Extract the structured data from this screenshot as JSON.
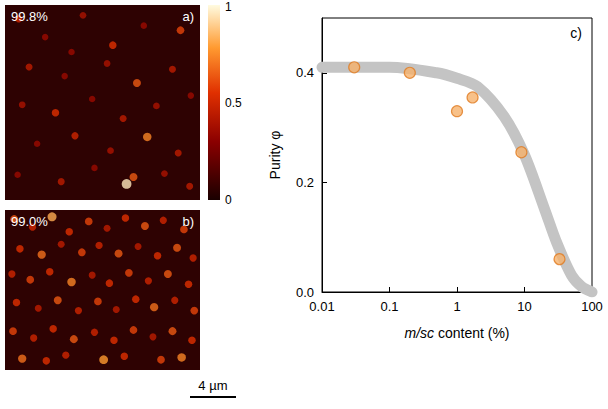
{
  "chart_data": [
    {
      "type": "heatmap",
      "panel": "a)",
      "title": "99.8%",
      "xlim": [
        0,
        17
      ],
      "ylim": [
        0,
        17
      ],
      "tick_labels": false,
      "spots": [
        [
          1.2,
          15.8,
          0.45
        ],
        [
          3.5,
          14.2,
          0.3
        ],
        [
          6.8,
          16.1,
          0.35
        ],
        [
          9.4,
          13.5,
          0.5
        ],
        [
          12.1,
          15.2,
          0.3
        ],
        [
          15.3,
          14.8,
          0.55
        ],
        [
          2.1,
          11.6,
          0.4
        ],
        [
          5.2,
          10.8,
          0.3
        ],
        [
          8.9,
          11.9,
          0.35
        ],
        [
          11.5,
          10.2,
          0.6
        ],
        [
          14.6,
          11.4,
          0.4
        ],
        [
          16.2,
          9.1,
          0.3
        ],
        [
          1.5,
          8.3,
          0.35
        ],
        [
          4.4,
          7.6,
          0.5
        ],
        [
          7.6,
          8.8,
          0.3
        ],
        [
          10.3,
          7.1,
          0.4
        ],
        [
          13.2,
          8.2,
          0.35
        ],
        [
          2.8,
          4.9,
          0.3
        ],
        [
          6.1,
          5.6,
          0.45
        ],
        [
          9.2,
          4.3,
          0.35
        ],
        [
          12.4,
          5.5,
          0.7
        ],
        [
          15.1,
          4.1,
          0.4
        ],
        [
          1.1,
          2.2,
          0.3
        ],
        [
          4.9,
          1.6,
          0.4
        ],
        [
          7.8,
          2.8,
          0.3
        ],
        [
          10.6,
          1.4,
          0.95
        ],
        [
          13.9,
          2.3,
          0.35
        ],
        [
          16.1,
          1.2,
          0.4
        ],
        [
          11.2,
          2.0,
          0.6
        ],
        [
          5.8,
          12.9,
          0.3
        ]
      ],
      "colorbar": {
        "range": [
          0,
          1
        ],
        "ticks": [
          0,
          0.5,
          1
        ]
      }
    },
    {
      "type": "heatmap",
      "panel": "b)",
      "title": "99.0%",
      "xlim": [
        0,
        17
      ],
      "ylim": [
        0,
        14
      ],
      "tick_labels": false,
      "spots": [
        [
          0.8,
          13.2,
          0.6
        ],
        [
          2.4,
          12.5,
          0.45
        ],
        [
          4.1,
          13.4,
          0.8
        ],
        [
          5.6,
          12.1,
          0.5
        ],
        [
          7.3,
          13.0,
          0.55
        ],
        [
          8.9,
          12.4,
          0.4
        ],
        [
          10.5,
          13.3,
          0.5
        ],
        [
          12.2,
          12.6,
          0.6
        ],
        [
          13.8,
          13.1,
          0.45
        ],
        [
          15.6,
          12.3,
          0.55
        ],
        [
          1.3,
          10.6,
          0.5
        ],
        [
          3.2,
          10.1,
          0.65
        ],
        [
          4.9,
          11.0,
          0.4
        ],
        [
          6.7,
          10.3,
          0.55
        ],
        [
          8.2,
          10.9,
          0.45
        ],
        [
          9.9,
          10.2,
          0.6
        ],
        [
          11.6,
          10.8,
          0.4
        ],
        [
          13.3,
          10.0,
          0.5
        ],
        [
          15.0,
          10.7,
          0.6
        ],
        [
          16.4,
          9.8,
          0.45
        ],
        [
          0.6,
          8.4,
          0.45
        ],
        [
          2.2,
          7.9,
          0.55
        ],
        [
          3.9,
          8.6,
          0.5
        ],
        [
          5.8,
          7.7,
          0.7
        ],
        [
          7.6,
          8.3,
          0.4
        ],
        [
          9.1,
          7.6,
          0.5
        ],
        [
          10.8,
          8.5,
          0.55
        ],
        [
          12.5,
          7.8,
          0.45
        ],
        [
          14.2,
          8.4,
          0.6
        ],
        [
          16.0,
          7.5,
          0.5
        ],
        [
          1.0,
          5.9,
          0.5
        ],
        [
          2.9,
          5.4,
          0.4
        ],
        [
          4.6,
          6.1,
          0.6
        ],
        [
          6.4,
          5.2,
          0.45
        ],
        [
          8.1,
          6.0,
          0.55
        ],
        [
          9.7,
          5.3,
          0.4
        ],
        [
          11.4,
          6.2,
          0.5
        ],
        [
          13.0,
          5.5,
          0.65
        ],
        [
          14.8,
          6.1,
          0.45
        ],
        [
          16.5,
          5.2,
          0.55
        ],
        [
          0.7,
          3.4,
          0.55
        ],
        [
          2.5,
          2.8,
          0.45
        ],
        [
          4.2,
          3.6,
          0.5
        ],
        [
          6.0,
          2.7,
          0.6
        ],
        [
          7.8,
          3.3,
          0.45
        ],
        [
          9.5,
          2.6,
          0.5
        ],
        [
          11.2,
          3.5,
          0.55
        ],
        [
          12.9,
          2.9,
          0.4
        ],
        [
          14.6,
          3.4,
          0.6
        ],
        [
          16.3,
          2.6,
          0.5
        ],
        [
          1.5,
          1.0,
          0.65
        ],
        [
          3.6,
          0.8,
          0.5
        ],
        [
          5.3,
          1.3,
          0.45
        ],
        [
          8.6,
          0.9,
          0.75
        ],
        [
          10.4,
          1.2,
          0.5
        ],
        [
          13.6,
          0.9,
          0.55
        ],
        [
          15.4,
          1.1,
          0.7
        ]
      ],
      "scale_bar": {
        "length": 4,
        "label": "4 µm"
      }
    },
    {
      "type": "scatter",
      "panel": "c)",
      "xlabel": "m/sc content (%)",
      "ylabel": "Purity φ",
      "log": "x",
      "xlim": [
        0.01,
        100
      ],
      "xticks": [
        0.01,
        0.1,
        1,
        10,
        100
      ],
      "ylim": [
        0,
        0.5
      ],
      "yticks": [
        {
          "value": 0,
          "label": "0.0"
        },
        0.2,
        0.4
      ],
      "grid": false,
      "series": [
        {
          "type": "line",
          "color": "#c4c4c4",
          "line_style": "solid",
          "x": [
            0.01,
            0.1,
            0.5,
            1,
            2,
            5,
            10,
            20,
            30,
            50,
            70,
            100
          ],
          "values": [
            0.41,
            0.41,
            0.4,
            0.39,
            0.375,
            0.32,
            0.25,
            0.15,
            0.09,
            0.03,
            0.01,
            0.0
          ]
        },
        {
          "type": "scatter",
          "color": "#f6b26b",
          "marker": "circle",
          "x": [
            0.03,
            0.2,
            1.0,
            1.7,
            9,
            33
          ],
          "values": [
            0.41,
            0.4,
            0.33,
            0.355,
            0.255,
            0.06
          ]
        }
      ]
    }
  ]
}
